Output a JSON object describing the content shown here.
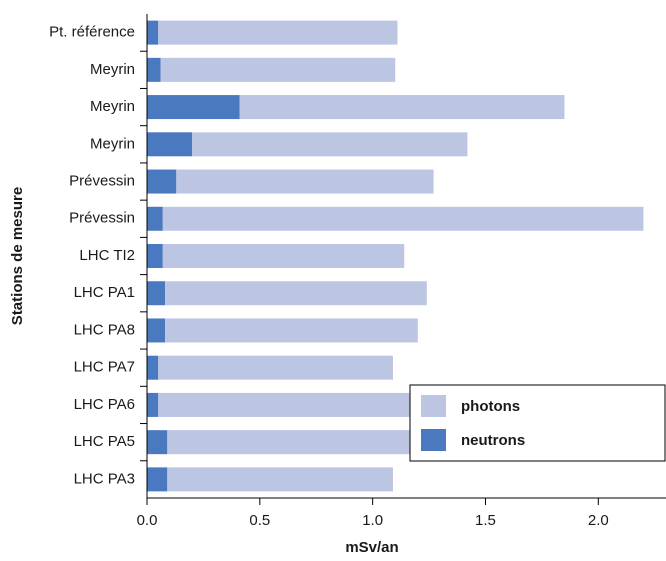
{
  "chart_data": {
    "type": "stacked-barh",
    "categories": [
      "Pt. référence",
      "Meyrin",
      "Meyrin",
      "Meyrin",
      "Prévessin",
      "Prévessin",
      "LHC TI2",
      "LHC PA1",
      "LHC PA8",
      "LHC PA7",
      "LHC PA6",
      "LHC PA5",
      "LHC PA3"
    ],
    "series": [
      {
        "name": "neutrons",
        "color": "#4a79c0",
        "values": [
          0.05,
          0.06,
          0.41,
          0.2,
          0.13,
          0.07,
          0.07,
          0.08,
          0.08,
          0.05,
          0.05,
          0.09,
          0.09
        ]
      },
      {
        "name": "photons",
        "color": "#bcc6e3",
        "values": [
          1.06,
          1.04,
          1.44,
          1.22,
          1.14,
          2.13,
          1.07,
          1.16,
          1.12,
          1.04,
          1.15,
          1.08,
          1.0
        ]
      }
    ],
    "xlim": [
      0,
      2.3
    ],
    "xticks": [
      {
        "value": 0,
        "label": "0.0"
      },
      0.5,
      {
        "value": 1,
        "label": "1.0"
      },
      1.5,
      {
        "value": 2,
        "label": "2.0"
      }
    ],
    "xlabel": "mSv/an",
    "ylabel": "Stations de mesure",
    "legend": "lower right"
  }
}
